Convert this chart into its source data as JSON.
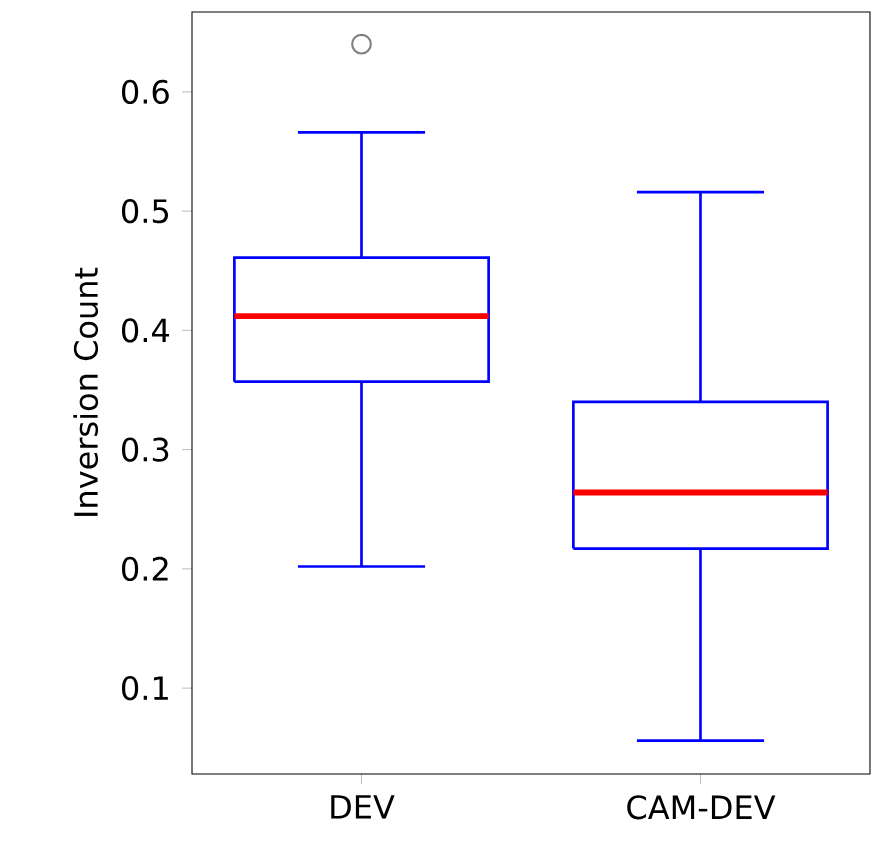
{
  "chart_data": {
    "type": "box",
    "ylabel": "Inversion Count",
    "categories": [
      "DEV",
      "CAM-DEV"
    ],
    "series": [
      {
        "color": "#0000ff",
        "boxes": [
          {
            "low": 0.202,
            "q1": 0.357,
            "median": 0.412,
            "q3": 0.461,
            "high": 0.566,
            "outliers": [
              0.64
            ]
          },
          {
            "low": 0.056,
            "q1": 0.217,
            "median": 0.264,
            "q3": 0.34,
            "high": 0.516
          }
        ]
      }
    ],
    "ylim": [
      0.028,
      0.667
    ],
    "yticks": [
      0.1,
      0.2,
      0.3,
      0.4,
      0.5,
      0.6
    ],
    "grid": false
  }
}
